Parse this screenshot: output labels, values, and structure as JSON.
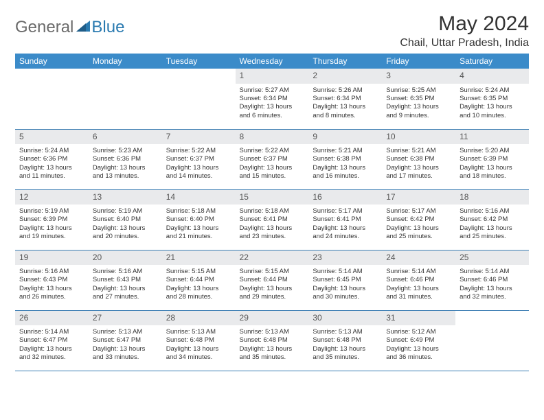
{
  "logo": {
    "general": "General",
    "blue": "Blue"
  },
  "title": "May 2024",
  "location": "Chail, Uttar Pradesh, India",
  "colors": {
    "header_bg": "#3b8bc9",
    "header_text": "#ffffff",
    "daynum_bg": "#e9eaec",
    "row_border": "#3b7db3",
    "body_text": "#333333",
    "logo_blue": "#2a7ab0",
    "logo_gray": "#6a6a6a"
  },
  "weekdays": [
    "Sunday",
    "Monday",
    "Tuesday",
    "Wednesday",
    "Thursday",
    "Friday",
    "Saturday"
  ],
  "weeks": [
    [
      null,
      null,
      null,
      {
        "n": "1",
        "sr": "5:27 AM",
        "ss": "6:34 PM",
        "dl": "13 hours and 6 minutes."
      },
      {
        "n": "2",
        "sr": "5:26 AM",
        "ss": "6:34 PM",
        "dl": "13 hours and 8 minutes."
      },
      {
        "n": "3",
        "sr": "5:25 AM",
        "ss": "6:35 PM",
        "dl": "13 hours and 9 minutes."
      },
      {
        "n": "4",
        "sr": "5:24 AM",
        "ss": "6:35 PM",
        "dl": "13 hours and 10 minutes."
      }
    ],
    [
      {
        "n": "5",
        "sr": "5:24 AM",
        "ss": "6:36 PM",
        "dl": "13 hours and 11 minutes."
      },
      {
        "n": "6",
        "sr": "5:23 AM",
        "ss": "6:36 PM",
        "dl": "13 hours and 13 minutes."
      },
      {
        "n": "7",
        "sr": "5:22 AM",
        "ss": "6:37 PM",
        "dl": "13 hours and 14 minutes."
      },
      {
        "n": "8",
        "sr": "5:22 AM",
        "ss": "6:37 PM",
        "dl": "13 hours and 15 minutes."
      },
      {
        "n": "9",
        "sr": "5:21 AM",
        "ss": "6:38 PM",
        "dl": "13 hours and 16 minutes."
      },
      {
        "n": "10",
        "sr": "5:21 AM",
        "ss": "6:38 PM",
        "dl": "13 hours and 17 minutes."
      },
      {
        "n": "11",
        "sr": "5:20 AM",
        "ss": "6:39 PM",
        "dl": "13 hours and 18 minutes."
      }
    ],
    [
      {
        "n": "12",
        "sr": "5:19 AM",
        "ss": "6:39 PM",
        "dl": "13 hours and 19 minutes."
      },
      {
        "n": "13",
        "sr": "5:19 AM",
        "ss": "6:40 PM",
        "dl": "13 hours and 20 minutes."
      },
      {
        "n": "14",
        "sr": "5:18 AM",
        "ss": "6:40 PM",
        "dl": "13 hours and 21 minutes."
      },
      {
        "n": "15",
        "sr": "5:18 AM",
        "ss": "6:41 PM",
        "dl": "13 hours and 23 minutes."
      },
      {
        "n": "16",
        "sr": "5:17 AM",
        "ss": "6:41 PM",
        "dl": "13 hours and 24 minutes."
      },
      {
        "n": "17",
        "sr": "5:17 AM",
        "ss": "6:42 PM",
        "dl": "13 hours and 25 minutes."
      },
      {
        "n": "18",
        "sr": "5:16 AM",
        "ss": "6:42 PM",
        "dl": "13 hours and 25 minutes."
      }
    ],
    [
      {
        "n": "19",
        "sr": "5:16 AM",
        "ss": "6:43 PM",
        "dl": "13 hours and 26 minutes."
      },
      {
        "n": "20",
        "sr": "5:16 AM",
        "ss": "6:43 PM",
        "dl": "13 hours and 27 minutes."
      },
      {
        "n": "21",
        "sr": "5:15 AM",
        "ss": "6:44 PM",
        "dl": "13 hours and 28 minutes."
      },
      {
        "n": "22",
        "sr": "5:15 AM",
        "ss": "6:44 PM",
        "dl": "13 hours and 29 minutes."
      },
      {
        "n": "23",
        "sr": "5:14 AM",
        "ss": "6:45 PM",
        "dl": "13 hours and 30 minutes."
      },
      {
        "n": "24",
        "sr": "5:14 AM",
        "ss": "6:46 PM",
        "dl": "13 hours and 31 minutes."
      },
      {
        "n": "25",
        "sr": "5:14 AM",
        "ss": "6:46 PM",
        "dl": "13 hours and 32 minutes."
      }
    ],
    [
      {
        "n": "26",
        "sr": "5:14 AM",
        "ss": "6:47 PM",
        "dl": "13 hours and 32 minutes."
      },
      {
        "n": "27",
        "sr": "5:13 AM",
        "ss": "6:47 PM",
        "dl": "13 hours and 33 minutes."
      },
      {
        "n": "28",
        "sr": "5:13 AM",
        "ss": "6:48 PM",
        "dl": "13 hours and 34 minutes."
      },
      {
        "n": "29",
        "sr": "5:13 AM",
        "ss": "6:48 PM",
        "dl": "13 hours and 35 minutes."
      },
      {
        "n": "30",
        "sr": "5:13 AM",
        "ss": "6:48 PM",
        "dl": "13 hours and 35 minutes."
      },
      {
        "n": "31",
        "sr": "5:12 AM",
        "ss": "6:49 PM",
        "dl": "13 hours and 36 minutes."
      },
      null
    ]
  ],
  "labels": {
    "sunrise": "Sunrise: ",
    "sunset": "Sunset: ",
    "daylight": "Daylight: "
  }
}
